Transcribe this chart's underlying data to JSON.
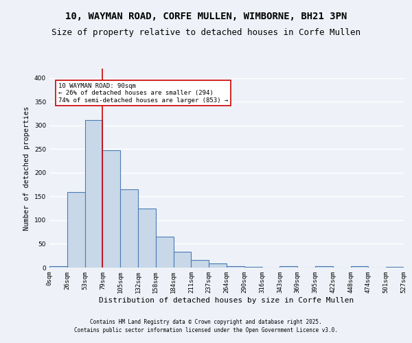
{
  "title_line1": "10, WAYMAN ROAD, CORFE MULLEN, WIMBORNE, BH21 3PN",
  "title_line2": "Size of property relative to detached houses in Corfe Mullen",
  "xlabel": "Distribution of detached houses by size in Corfe Mullen",
  "ylabel": "Number of detached properties",
  "bin_labels": [
    "0sqm",
    "26sqm",
    "53sqm",
    "79sqm",
    "105sqm",
    "132sqm",
    "158sqm",
    "184sqm",
    "211sqm",
    "237sqm",
    "264sqm",
    "290sqm",
    "316sqm",
    "343sqm",
    "369sqm",
    "395sqm",
    "422sqm",
    "448sqm",
    "474sqm",
    "501sqm",
    "527sqm"
  ],
  "bar_values": [
    3,
    160,
    312,
    248,
    165,
    125,
    65,
    33,
    16,
    8,
    3,
    1,
    0,
    3,
    0,
    3,
    0,
    3,
    0,
    2
  ],
  "bar_color": "#c8d8e8",
  "bar_edge_color": "#4a7ab5",
  "background_color": "#eef2f8",
  "grid_color": "#ffffff",
  "property_bin_index": 3,
  "annotation_text": "10 WAYMAN ROAD: 90sqm\n← 26% of detached houses are smaller (294)\n74% of semi-detached houses are larger (853) →",
  "annotation_box_color": "#ffffff",
  "annotation_box_edge": "#cc0000",
  "vline_color": "#cc0000",
  "ylim": [
    0,
    420
  ],
  "yticks": [
    0,
    50,
    100,
    150,
    200,
    250,
    300,
    350,
    400
  ],
  "footer_line1": "Contains HM Land Registry data © Crown copyright and database right 2025.",
  "footer_line2": "Contains public sector information licensed under the Open Government Licence v3.0.",
  "title_fontsize": 10,
  "subtitle_fontsize": 9,
  "label_fontsize": 7.5,
  "tick_fontsize": 6.5
}
